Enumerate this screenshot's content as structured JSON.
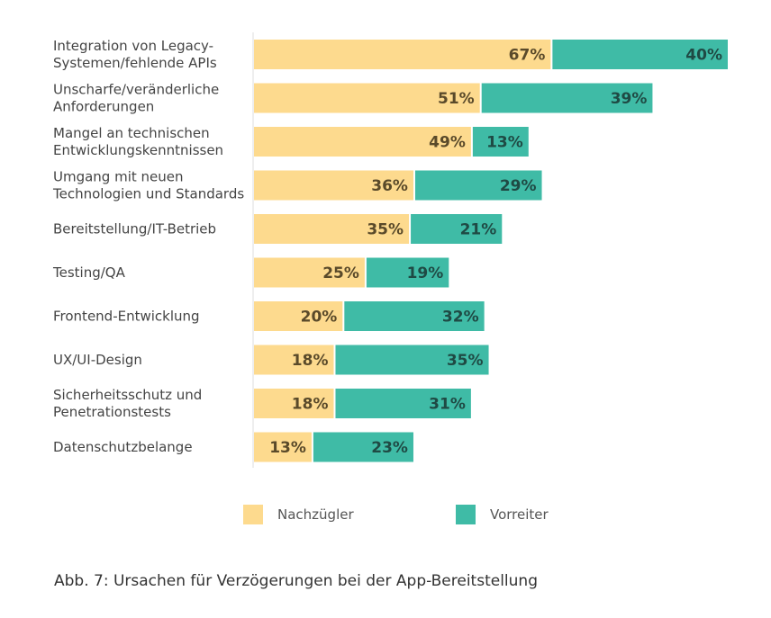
{
  "chart_data": {
    "type": "bar",
    "orientation": "horizontal",
    "stacked": true,
    "categories": [
      [
        "Integration von Legacy-",
        "Systemen/fehlende APIs"
      ],
      [
        "Unscharfe/veränderliche",
        "Anforderungen"
      ],
      [
        "Mangel an technischen",
        "Entwicklungskenntnissen"
      ],
      [
        "Umgang mit neuen",
        "Technologien und Standards"
      ],
      [
        "Bereitstellung/IT-Betrieb"
      ],
      [
        "Testing/QA"
      ],
      [
        "Frontend-Entwicklung"
      ],
      [
        "UX/UI-Design"
      ],
      [
        "Sicherheitsschutz und",
        "Penetrationstests"
      ],
      [
        "Datenschutzbelange"
      ]
    ],
    "series": [
      {
        "name": "Nachzügler",
        "color": "#FDDA8E",
        "label_color": "#5A4A2A",
        "values": [
          67,
          51,
          49,
          36,
          35,
          25,
          20,
          18,
          18,
          13
        ]
      },
      {
        "name": "Vorreiter",
        "color": "#3FBBA6",
        "label_color": "#1F4A44",
        "values": [
          40,
          39,
          13,
          29,
          21,
          19,
          32,
          35,
          31,
          23
        ]
      }
    ],
    "value_suffix": "%",
    "xlim": [
      0,
      107
    ],
    "grid": false,
    "legend_position": "bottom"
  },
  "caption": "Abb. 7: Ursachen für Verzögerungen bei der App-Bereitstellung"
}
